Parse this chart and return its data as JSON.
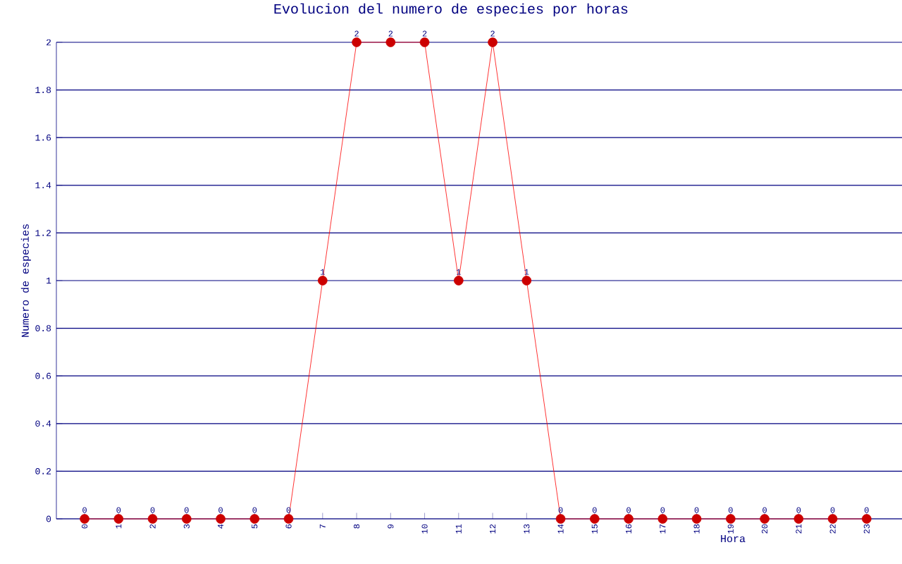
{
  "chart_data": {
    "type": "line",
    "title": "Evolucion del numero de especies por horas",
    "xlabel": "Hora",
    "ylabel": "Numero de especies",
    "categories": [
      "0",
      "1",
      "2",
      "3",
      "4",
      "5",
      "6",
      "7",
      "8",
      "9",
      "10",
      "11",
      "12",
      "13",
      "14",
      "15",
      "16",
      "17",
      "18",
      "19",
      "20",
      "21",
      "22",
      "23"
    ],
    "series": [
      {
        "color": "#ff0000",
        "values": [
          0,
          0,
          0,
          0,
          0,
          0,
          0,
          1,
          2,
          2,
          2,
          1,
          2,
          1,
          0,
          0,
          0,
          0,
          0,
          0,
          0,
          0,
          0,
          0
        ]
      }
    ],
    "ylim": [
      0,
      2
    ],
    "yticks": [
      0,
      0.2,
      0.4,
      0.6,
      0.8,
      1,
      1.2,
      1.4,
      1.6,
      1.8,
      2
    ],
    "grid": "y",
    "marker": "circle",
    "line_style": "solid",
    "data_labels": true
  }
}
